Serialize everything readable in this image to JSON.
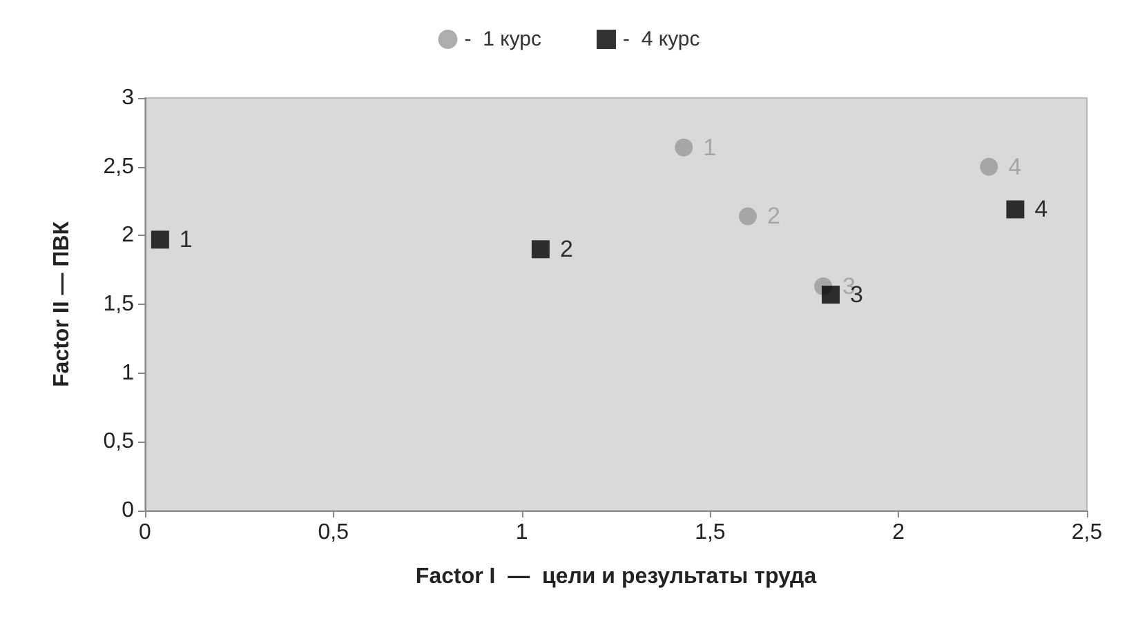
{
  "chart_data": {
    "type": "scatter",
    "xlabel": "Factor I  —  цели и результаты труда",
    "ylabel": "Factor II — ПВК",
    "xlim": [
      0,
      2.5
    ],
    "xticks": [
      0,
      {
        "value": 0.5,
        "label": "0,5"
      },
      1,
      {
        "value": 1.5,
        "label": "1,5"
      },
      2,
      {
        "value": 2.5,
        "label": "2,5"
      }
    ],
    "ylim": [
      0,
      3
    ],
    "yticks": [
      0,
      {
        "value": 0.5,
        "label": "0,5"
      },
      1,
      {
        "value": 1.5,
        "label": "1,5"
      },
      2,
      {
        "value": 2.5,
        "label": "2,5"
      },
      3
    ],
    "grid": false,
    "legend": "top",
    "series": [
      {
        "name": "-  1 курс",
        "color": "#999999",
        "marker": "circle",
        "x": [
          1.43,
          1.6,
          1.8,
          2.24
        ],
        "values": [
          2.64,
          2.14,
          1.63,
          2.5
        ]
      },
      {
        "name": "-  4 курс",
        "color": "#000000",
        "marker": "square",
        "x": [
          0.04,
          1.05,
          1.82,
          2.31
        ],
        "values": [
          1.97,
          1.9,
          1.57,
          2.19
        ]
      }
    ],
    "annotations": [
      {
        "text": "1",
        "x": 1.43,
        "y": 2.64
      },
      {
        "text": "2",
        "x": 1.6,
        "y": 2.14
      },
      {
        "text": "3",
        "x": 1.8,
        "y": 1.63
      },
      {
        "text": "4",
        "x": 2.24,
        "y": 2.5
      },
      {
        "text": "1",
        "x": 0.04,
        "y": 1.97
      },
      {
        "text": "2",
        "x": 1.05,
        "y": 1.9
      },
      {
        "text": "3",
        "x": 1.82,
        "y": 1.57
      },
      {
        "text": "4",
        "x": 2.31,
        "y": 2.19
      }
    ]
  }
}
